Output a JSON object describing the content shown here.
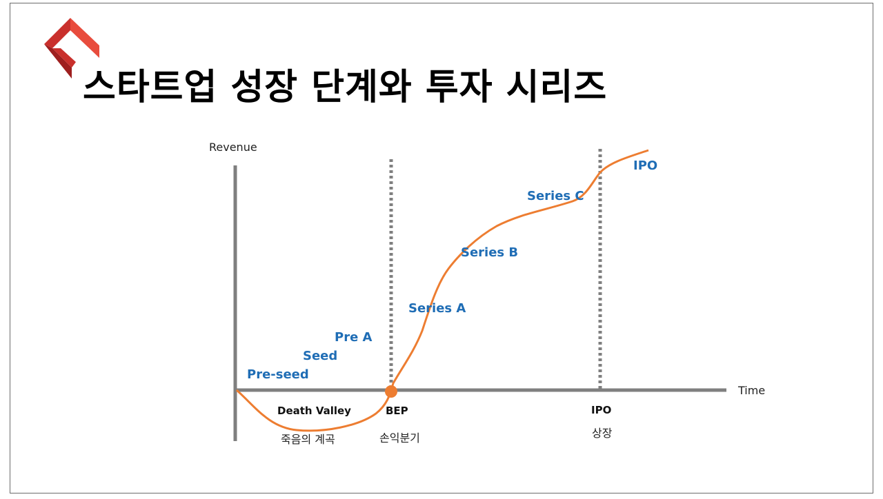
{
  "title": "스타트업 성장 단계와 투자 시리즈",
  "logo": {
    "icon": "red-chevron-logo-icon",
    "colors": [
      "#c9302c",
      "#e84c3d",
      "#9e1f1f"
    ]
  },
  "diagram": {
    "y_axis_label": "Revenue",
    "x_axis_label": "Time",
    "stages": [
      "Pre-seed",
      "Seed",
      "Pre A",
      "Series A",
      "Series B",
      "Series C",
      "IPO"
    ],
    "markers": [
      {
        "label": "BEP",
        "sublabel": "손익분기"
      },
      {
        "label": "IPO",
        "sublabel": "상장"
      }
    ],
    "valley": {
      "label": "Death Valley",
      "sublabel": "죽음의 계곡"
    },
    "colors": {
      "curve": "#ed7d31",
      "stage_text": "#1f6db5",
      "axis": "#7f7f7f",
      "marker_line": "#7f7f7f",
      "bep_dot": "#ed7d31"
    }
  }
}
